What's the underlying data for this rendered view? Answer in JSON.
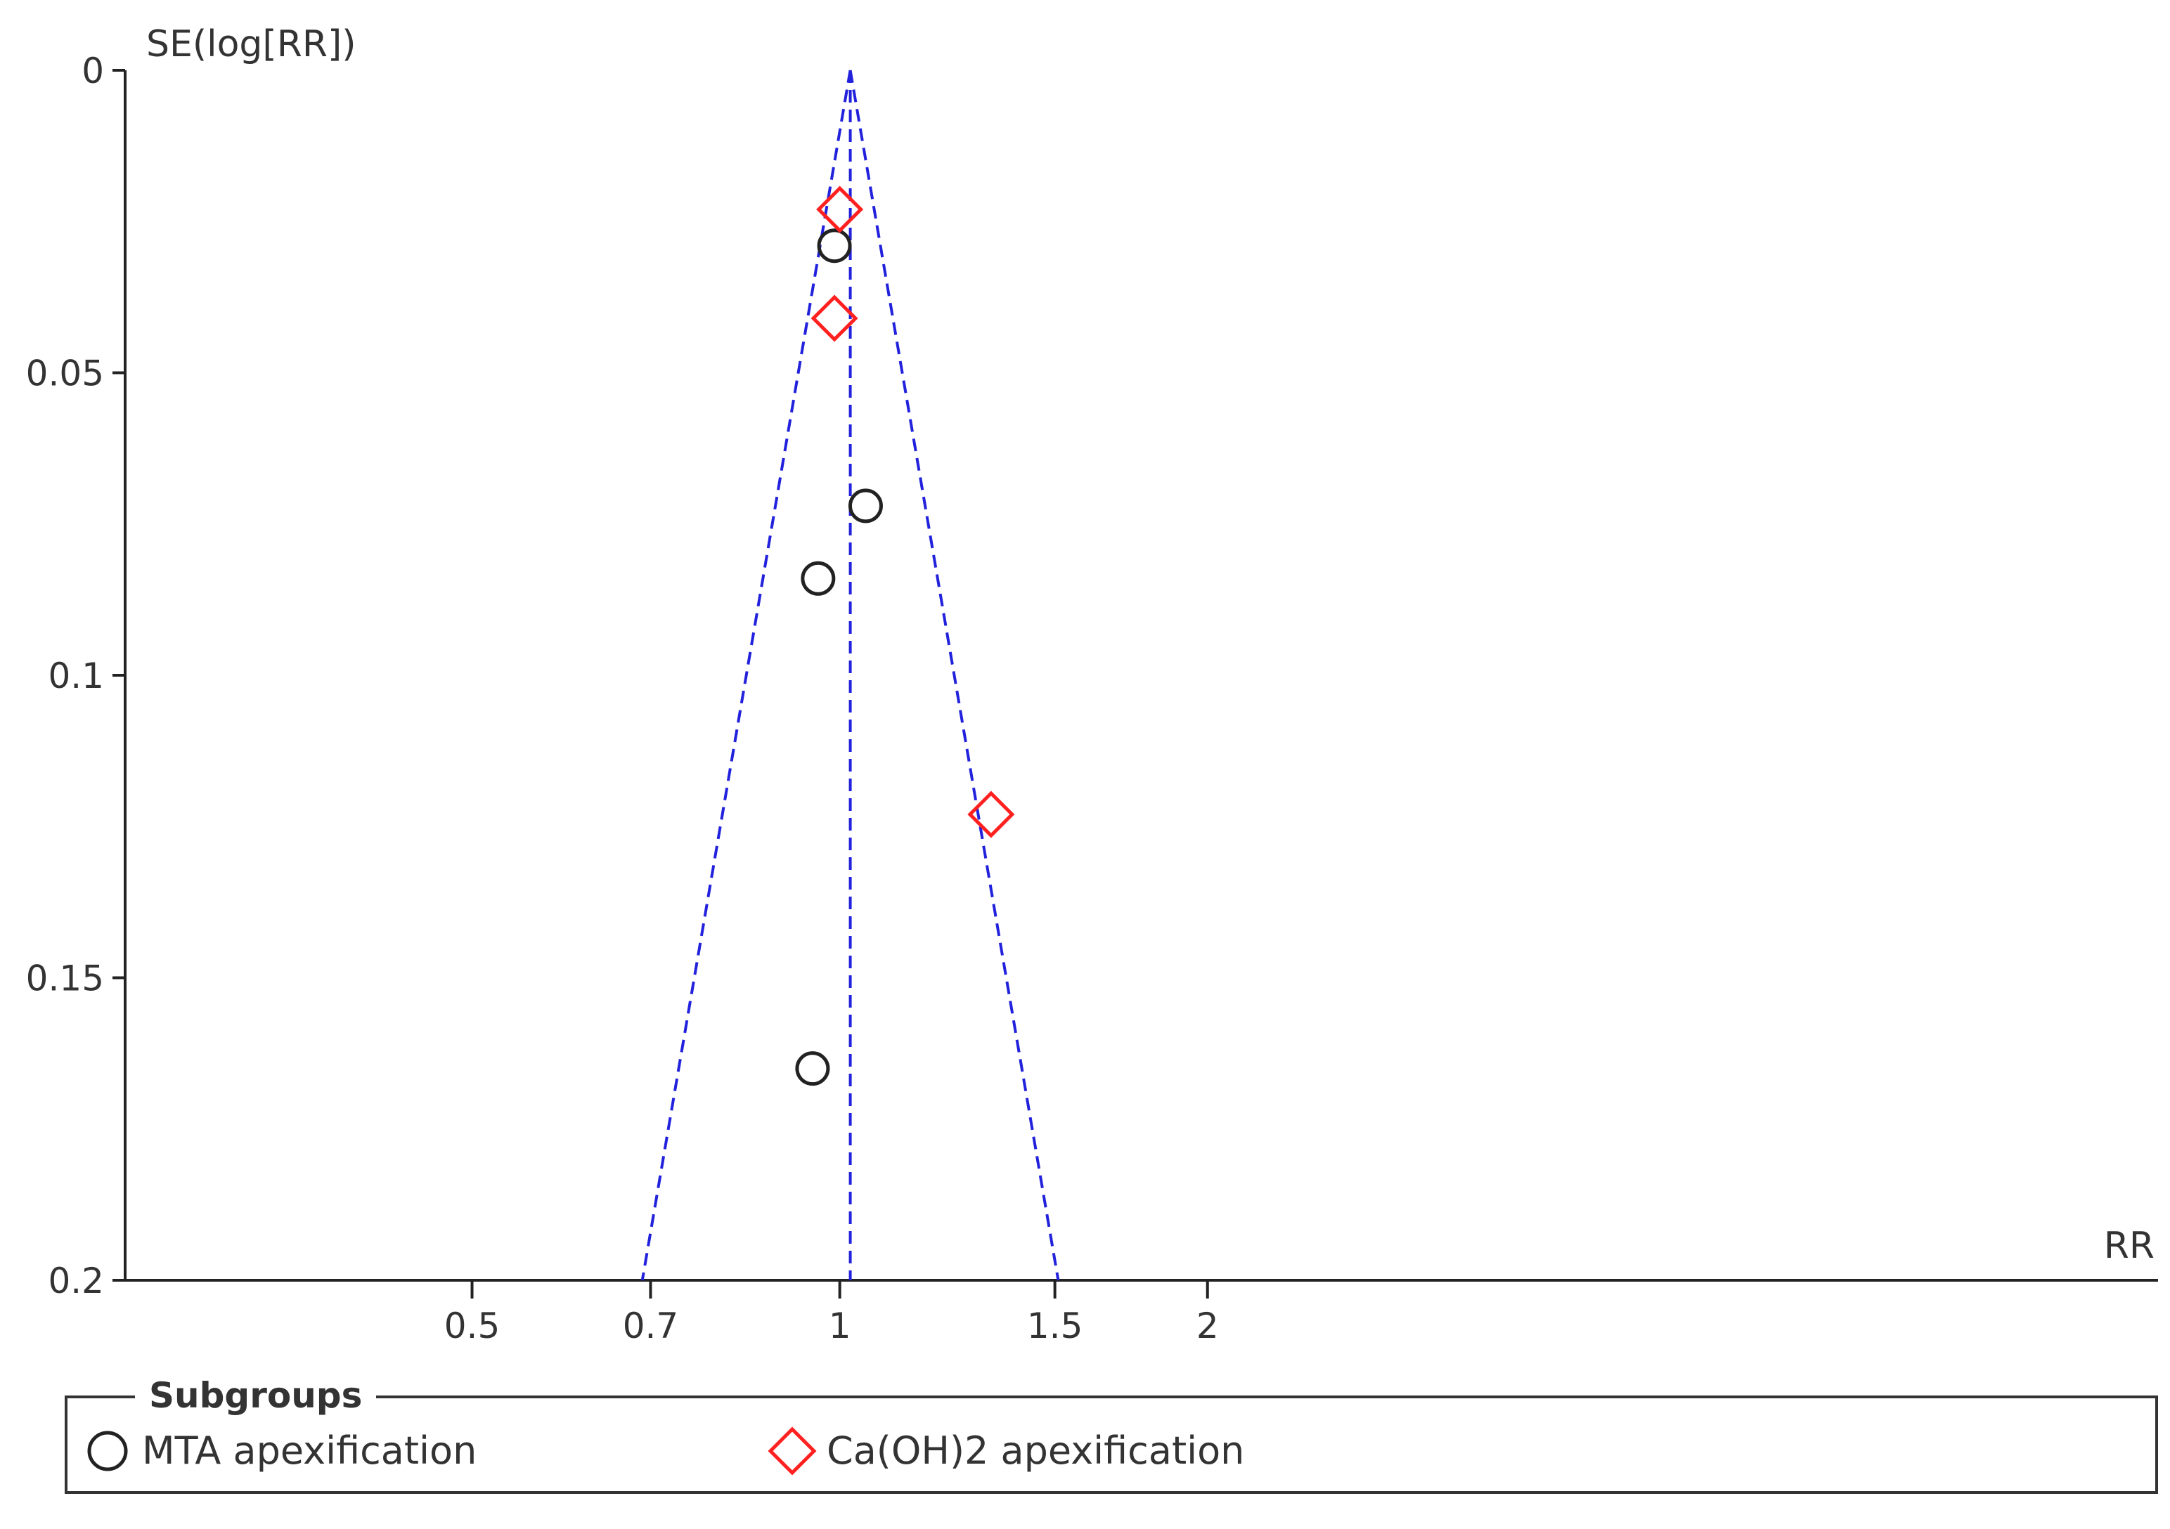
{
  "chart_data": {
    "type": "scatter",
    "title": "",
    "ylabel": "SE(log[RR])",
    "xlabel": "RR",
    "x_scale": "log",
    "xlim": [
      0.26,
      12.0
    ],
    "ylim": [
      0,
      0.2
    ],
    "y_inverted": true,
    "y_ticks": [
      {
        "value": 0,
        "label": "0"
      },
      {
        "value": 0.05,
        "label": "0.05"
      },
      {
        "value": 0.1,
        "label": "0.1"
      },
      {
        "value": 0.15,
        "label": "0.15"
      },
      {
        "value": 0.2,
        "label": "0.2"
      }
    ],
    "x_ticks": [
      {
        "value": 0.5,
        "label": "0.5"
      },
      {
        "value": 0.7,
        "label": "0.7"
      },
      {
        "value": 1,
        "label": "1"
      },
      {
        "value": 1.5,
        "label": "1.5"
      },
      {
        "value": 2,
        "label": "2"
      }
    ],
    "pooled_estimate": 1.02,
    "funnel_z": 1.96,
    "funnel_color": "#2222dd",
    "series": [
      {
        "name": "MTA apexification",
        "marker": "circle",
        "color": "#222222",
        "points": [
          {
            "x": 0.99,
            "y": 0.029
          },
          {
            "x": 1.05,
            "y": 0.072
          },
          {
            "x": 0.96,
            "y": 0.084
          },
          {
            "x": 0.95,
            "y": 0.165
          }
        ]
      },
      {
        "name": "Ca(OH)2 apexification",
        "marker": "diamond",
        "color": "#ff2020",
        "points": [
          {
            "x": 1.0,
            "y": 0.023
          },
          {
            "x": 0.99,
            "y": 0.041
          },
          {
            "x": 1.33,
            "y": 0.123
          }
        ]
      }
    ],
    "legend": {
      "title": "Subgroups",
      "position": "bottom"
    }
  }
}
